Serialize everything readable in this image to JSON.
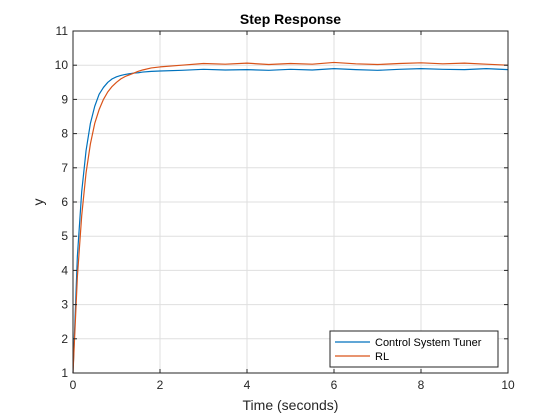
{
  "chart_data": {
    "type": "line",
    "title": "Step Response",
    "xlabel": "Time (seconds)",
    "ylabel": "y",
    "xlim": [
      0,
      10
    ],
    "ylim": [
      1,
      11
    ],
    "xticks": [
      "0",
      "2",
      "4",
      "6",
      "8",
      "10"
    ],
    "yticks": [
      "1",
      "2",
      "3",
      "4",
      "5",
      "6",
      "7",
      "8",
      "9",
      "10",
      "11"
    ],
    "grid": true,
    "legend_position": "bottom-right",
    "series": [
      {
        "name": "Control System Tuner",
        "color": "#0072BD",
        "x": [
          0,
          0.1,
          0.2,
          0.3,
          0.4,
          0.5,
          0.6,
          0.7,
          0.8,
          0.9,
          1.0,
          1.1,
          1.2,
          1.3,
          1.4,
          1.5,
          1.6,
          1.8,
          2.0,
          2.5,
          3.0,
          3.5,
          4.0,
          4.5,
          5.0,
          5.5,
          6.0,
          6.5,
          7.0,
          7.5,
          8.0,
          8.5,
          9.0,
          9.5,
          10.0
        ],
        "y": [
          1.0,
          4.4,
          6.3,
          7.5,
          8.3,
          8.8,
          9.15,
          9.35,
          9.5,
          9.6,
          9.66,
          9.7,
          9.73,
          9.75,
          9.77,
          9.78,
          9.8,
          9.82,
          9.83,
          9.85,
          9.88,
          9.86,
          9.87,
          9.85,
          9.88,
          9.86,
          9.9,
          9.87,
          9.85,
          9.88,
          9.9,
          9.88,
          9.87,
          9.9,
          9.87
        ]
      },
      {
        "name": "RL",
        "color": "#D95319",
        "x": [
          0,
          0.1,
          0.2,
          0.3,
          0.4,
          0.5,
          0.6,
          0.7,
          0.8,
          0.9,
          1.0,
          1.1,
          1.2,
          1.3,
          1.4,
          1.5,
          1.6,
          1.8,
          2.0,
          2.5,
          3.0,
          3.5,
          4.0,
          4.5,
          5.0,
          5.5,
          6.0,
          6.5,
          7.0,
          7.5,
          8.0,
          8.5,
          9.0,
          9.5,
          10.0
        ],
        "y": [
          1.0,
          3.8,
          5.6,
          6.85,
          7.7,
          8.3,
          8.7,
          9.0,
          9.22,
          9.38,
          9.5,
          9.6,
          9.67,
          9.72,
          9.77,
          9.82,
          9.86,
          9.92,
          9.95,
          10.0,
          10.05,
          10.03,
          10.06,
          10.02,
          10.05,
          10.03,
          10.08,
          10.04,
          10.02,
          10.05,
          10.07,
          10.04,
          10.06,
          10.03,
          10.0
        ]
      }
    ]
  }
}
